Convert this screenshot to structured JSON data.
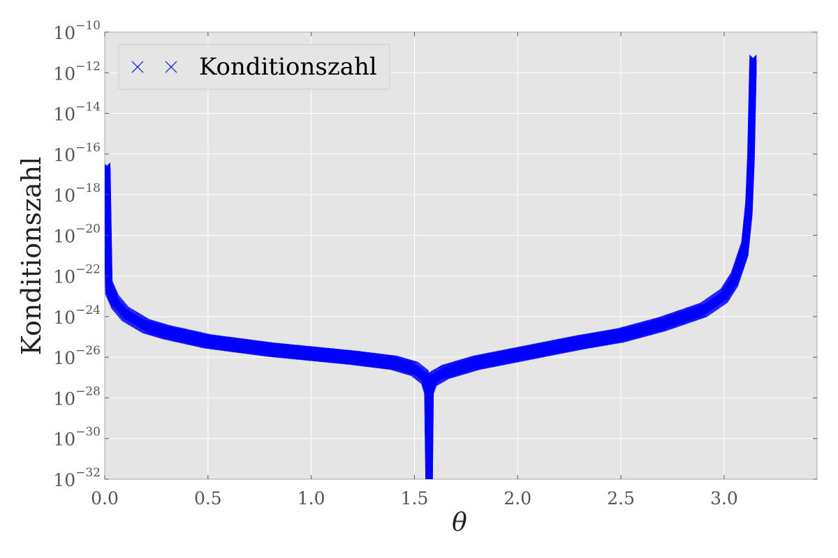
{
  "chart_data": {
    "type": "scatter",
    "xlabel": "θ",
    "ylabel": "Konditionszahl",
    "xlim": [
      0.0,
      3.45
    ],
    "ylim_log10": [
      -32,
      -10
    ],
    "y_scale": "log",
    "grid": true,
    "legend_position": "top-left",
    "marker": "x",
    "x_ticks": [
      "0.0",
      "0.5",
      "1.0",
      "1.5",
      "2.0",
      "2.5",
      "3.0"
    ],
    "y_ticks": [
      "10^-10",
      "10^-12",
      "10^-14",
      "10^-16",
      "10^-18",
      "10^-20",
      "10^-22",
      "10^-24",
      "10^-26",
      "10^-28",
      "10^-30",
      "10^-32"
    ],
    "series": [
      {
        "name": "Konditionszahl",
        "color": "#0000ff",
        "x": [
          0.01,
          0.02,
          0.05,
          0.1,
          0.2,
          0.3,
          0.5,
          0.8,
          1.0,
          1.2,
          1.4,
          1.5,
          1.55,
          1.565,
          1.571,
          1.576,
          1.59,
          1.65,
          1.8,
          2.0,
          2.3,
          2.5,
          2.7,
          2.9,
          3.0,
          3.05,
          3.1,
          3.12,
          3.13,
          3.14
        ],
        "y_log10": [
          -16.6,
          -22.4,
          -23.1,
          -23.7,
          -24.3,
          -24.6,
          -25.05,
          -25.45,
          -25.65,
          -25.85,
          -26.1,
          -26.4,
          -26.8,
          -27.3,
          -31.8,
          -27.3,
          -26.9,
          -26.55,
          -26.1,
          -25.7,
          -25.1,
          -24.75,
          -24.2,
          -23.5,
          -22.8,
          -22.0,
          -20.5,
          -18.5,
          -16.0,
          -11.3
        ]
      }
    ]
  },
  "colors": {
    "plot_background": "#e5e5e5",
    "grid": "#ffffff",
    "marker": "#0000ff"
  }
}
